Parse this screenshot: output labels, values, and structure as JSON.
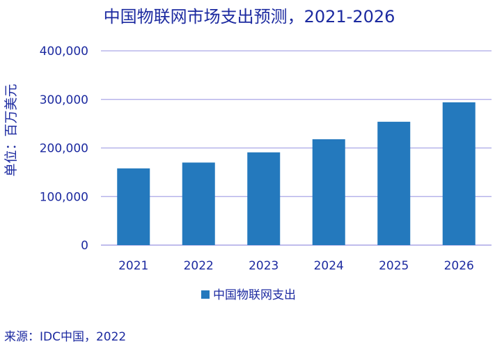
{
  "chart_data": {
    "type": "bar",
    "title": "中国物联网市场支出预测，2021-2026",
    "xlabel": "",
    "ylabel": "单位：百万美元",
    "categories": [
      "2021",
      "2022",
      "2023",
      "2024",
      "2025",
      "2026"
    ],
    "series": [
      {
        "name": "中国物联网支出",
        "values": [
          158000,
          170000,
          191000,
          218000,
          254000,
          294000
        ],
        "color": "#2479bd"
      }
    ],
    "ylim": [
      0,
      400000
    ],
    "yticks": [
      0,
      100000,
      200000,
      300000,
      400000
    ],
    "ytick_labels": [
      "0",
      "100,000",
      "200,000",
      "300,000",
      "400,000"
    ],
    "grid": true,
    "gridline_color": "#aaa6e6",
    "text_color": "#1c2aa0",
    "legend_position": "bottom",
    "source": "来源：IDC中国，2022"
  }
}
